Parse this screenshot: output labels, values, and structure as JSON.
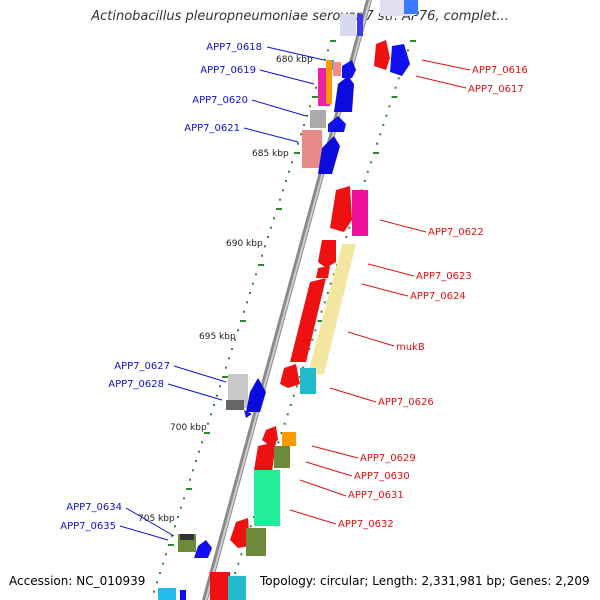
{
  "title": "Actinobacillus pleuropneumoniae serovar 7 str. AP76, complet...",
  "footer": {
    "accession": "Accession: NC_010939",
    "info": "Topology: circular; Length: 2,331,981 bp; Genes: 2,209"
  },
  "scale_labels": [
    "680 kbp",
    "685 kbp",
    "690 kbp",
    "695 kbp",
    "700 kbp",
    "705 kbp"
  ],
  "colors": {
    "forward_label": "#1010cc",
    "reverse_label": "#dd1111",
    "backbone": "#888888",
    "tick": "#2a8a2a"
  },
  "genes_reverse_strand": [
    "APP7_0618",
    "APP7_0619",
    "APP7_0620",
    "APP7_0621",
    "APP7_0627",
    "APP7_0628",
    "APP7_0634",
    "APP7_0635"
  ],
  "genes_forward_strand": [
    "APP7_0616",
    "APP7_0617",
    "APP7_0622",
    "APP7_0623",
    "APP7_0624",
    "mukB",
    "APP7_0626",
    "APP7_0629",
    "APP7_0630",
    "APP7_0631",
    "APP7_0632"
  ]
}
